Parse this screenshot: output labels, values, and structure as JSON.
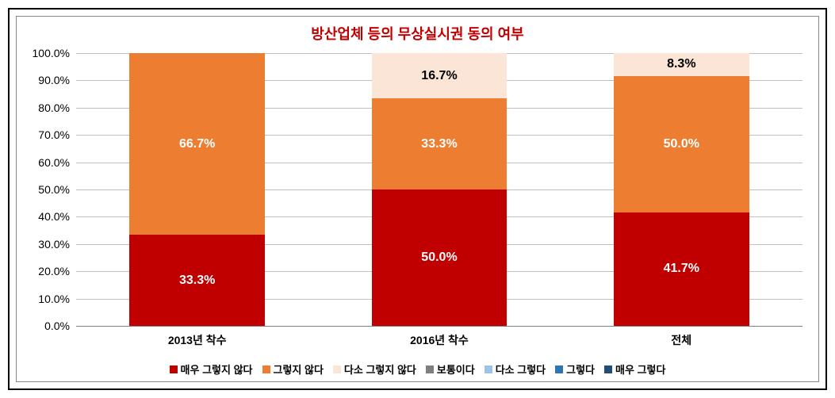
{
  "chart": {
    "title": "방산업체 등의 무상실시권 동의 여부",
    "title_color": "#c00000",
    "title_fontsize": 18,
    "background_color": "#ffffff",
    "grid_color": "#bfbfbf",
    "axis_line_color": "#808080",
    "ylim_min": 0,
    "ylim_max": 100,
    "ytick_step": 10,
    "ytick_suffix": "%",
    "ytick_decimals": 1,
    "label_fontsize": 14,
    "value_label_fontsize": 16,
    "bar_width_pct": 56,
    "categories": [
      "2013년 착수",
      "2016년 착수",
      "전체"
    ],
    "series": [
      {
        "name": "매우 그렇지 않다",
        "color": "#c00000",
        "label_color": "#ffffff"
      },
      {
        "name": "그렇지 않다",
        "color": "#ed7d31",
        "label_color": "#ffffff"
      },
      {
        "name": "다소 그렇지 않다",
        "color": "#fbe5d6",
        "label_color": "#000000"
      },
      {
        "name": "보통이다",
        "color": "#7f7f7f",
        "label_color": "#ffffff"
      },
      {
        "name": "다소 그렇다",
        "color": "#9dc3e6",
        "label_color": "#000000"
      },
      {
        "name": "그렇다",
        "color": "#2e75b6",
        "label_color": "#ffffff"
      },
      {
        "name": "매우 그렇다",
        "color": "#1f4e79",
        "label_color": "#ffffff"
      }
    ],
    "stacks": [
      [
        {
          "series": 0,
          "value": 33.3,
          "label": "33.3%"
        },
        {
          "series": 1,
          "value": 66.7,
          "label": "66.7%"
        }
      ],
      [
        {
          "series": 0,
          "value": 50.0,
          "label": "50.0%"
        },
        {
          "series": 1,
          "value": 33.3,
          "label": "33.3%"
        },
        {
          "series": 2,
          "value": 16.7,
          "label": "16.7%"
        }
      ],
      [
        {
          "series": 0,
          "value": 41.7,
          "label": "41.7%"
        },
        {
          "series": 1,
          "value": 50.0,
          "label": "50.0%"
        },
        {
          "series": 2,
          "value": 8.3,
          "label": "8.3%"
        }
      ]
    ],
    "legend_fontsize": 13
  }
}
